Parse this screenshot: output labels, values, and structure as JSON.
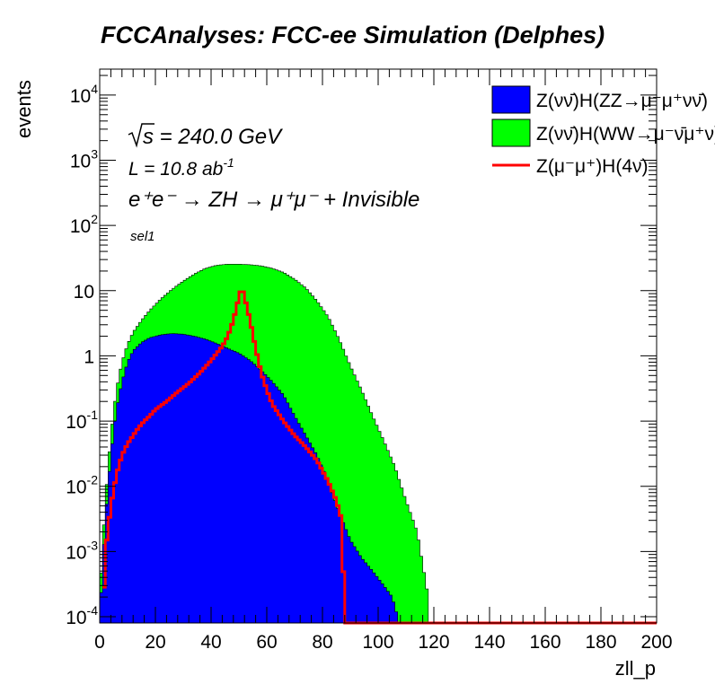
{
  "chart_data": {
    "type": "histogram",
    "title": "FCCAnalyses: FCC-ee Simulation (Delphes)",
    "xlabel": "zll_p",
    "ylabel": "events",
    "xlim": [
      0,
      200
    ],
    "ylim": [
      8e-05,
      25000
    ],
    "yscale": "log",
    "x_ticks": [
      0,
      20,
      40,
      60,
      80,
      100,
      120,
      140,
      160,
      180,
      200
    ],
    "y_ticks": [
      {
        "value": 0.0001,
        "mant": "10",
        "exp": "-4"
      },
      {
        "value": 0.001,
        "mant": "10",
        "exp": "-3"
      },
      {
        "value": 0.01,
        "mant": "10",
        "exp": "-2"
      },
      {
        "value": 0.1,
        "mant": "10",
        "exp": "-1"
      },
      {
        "value": 1,
        "mant": "1",
        "exp": ""
      },
      {
        "value": 10,
        "mant": "10",
        "exp": ""
      },
      {
        "value": 100,
        "mant": "10",
        "exp": "2"
      },
      {
        "value": 1000,
        "mant": "10",
        "exp": "3"
      },
      {
        "value": 10000,
        "mant": "10",
        "exp": "4"
      }
    ],
    "annotations": {
      "sqrt_s": "s = 240.0 GeV",
      "lumi_prefix": "L = 10.8 ab",
      "lumi_exp": "-1",
      "process": "e⁺e⁻ → ZH → μ⁺μ⁻ + Invisible",
      "selection": "sel1"
    },
    "legend_position": "top-right",
    "series": [
      {
        "name": "Z(νν̄)H(ZZ→μ⁻μ⁺νν̄)",
        "color": "#0000ff",
        "style": "filled",
        "points": [
          [
            0,
            0.0001
          ],
          [
            2,
            0.003
          ],
          [
            4,
            0.03
          ],
          [
            6,
            0.15
          ],
          [
            8,
            0.4
          ],
          [
            10,
            0.8
          ],
          [
            12,
            1.2
          ],
          [
            15,
            1.6
          ],
          [
            18,
            1.9
          ],
          [
            22,
            2.1
          ],
          [
            26,
            2.2
          ],
          [
            30,
            2.15
          ],
          [
            34,
            2.0
          ],
          [
            38,
            1.8
          ],
          [
            42,
            1.55
          ],
          [
            46,
            1.3
          ],
          [
            50,
            1.1
          ],
          [
            54,
            0.85
          ],
          [
            58,
            0.6
          ],
          [
            62,
            0.4
          ],
          [
            66,
            0.25
          ],
          [
            70,
            0.12
          ],
          [
            74,
            0.06
          ],
          [
            78,
            0.03
          ],
          [
            82,
            0.012
          ],
          [
            86,
            0.004
          ],
          [
            90,
            0.0015
          ],
          [
            94,
            0.0008
          ],
          [
            98,
            0.0005
          ],
          [
            102,
            0.0003
          ],
          [
            105,
            0.0002
          ],
          [
            107,
            0.0001
          ]
        ]
      },
      {
        "name": "Z(νν̄)H(WW→μ⁻ν̄μ⁺ν)",
        "color": "#00ff00",
        "style": "filled",
        "points": [
          [
            0,
            0.0002
          ],
          [
            2,
            0.006
          ],
          [
            4,
            0.06
          ],
          [
            6,
            0.3
          ],
          [
            8,
            0.8
          ],
          [
            10,
            1.5
          ],
          [
            12,
            2.3
          ],
          [
            15,
            3.5
          ],
          [
            18,
            5
          ],
          [
            22,
            7.5
          ],
          [
            26,
            10.5
          ],
          [
            30,
            14
          ],
          [
            34,
            18
          ],
          [
            38,
            22
          ],
          [
            42,
            24.5
          ],
          [
            46,
            25.5
          ],
          [
            50,
            25.5
          ],
          [
            54,
            25
          ],
          [
            58,
            24
          ],
          [
            62,
            22
          ],
          [
            66,
            19
          ],
          [
            70,
            15
          ],
          [
            74,
            11
          ],
          [
            78,
            7
          ],
          [
            82,
            4
          ],
          [
            86,
            1.8
          ],
          [
            90,
            0.7
          ],
          [
            94,
            0.3
          ],
          [
            98,
            0.12
          ],
          [
            102,
            0.05
          ],
          [
            106,
            0.02
          ],
          [
            110,
            0.006
          ],
          [
            114,
            0.002
          ],
          [
            118,
            0.0002
          ]
        ]
      },
      {
        "name": "Z(μ⁻μ⁺)H(4ν)",
        "color": "#ff0000",
        "style": "line",
        "points": [
          [
            1,
            8e-05
          ],
          [
            2,
            0.001
          ],
          [
            4,
            0.005
          ],
          [
            6,
            0.015
          ],
          [
            8,
            0.03
          ],
          [
            10,
            0.045
          ],
          [
            12,
            0.06
          ],
          [
            14,
            0.08
          ],
          [
            16,
            0.1
          ],
          [
            18,
            0.12
          ],
          [
            20,
            0.15
          ],
          [
            24,
            0.2
          ],
          [
            28,
            0.28
          ],
          [
            32,
            0.38
          ],
          [
            36,
            0.55
          ],
          [
            40,
            0.85
          ],
          [
            44,
            1.4
          ],
          [
            46,
            2
          ],
          [
            48,
            3.5
          ],
          [
            50,
            8
          ],
          [
            51,
            11.5
          ],
          [
            52,
            8
          ],
          [
            54,
            3.5
          ],
          [
            56,
            1.3
          ],
          [
            58,
            0.55
          ],
          [
            60,
            0.3
          ],
          [
            62,
            0.18
          ],
          [
            66,
            0.1
          ],
          [
            70,
            0.06
          ],
          [
            74,
            0.04
          ],
          [
            78,
            0.025
          ],
          [
            82,
            0.012
          ],
          [
            85,
            0.006
          ],
          [
            87,
            0.003
          ],
          [
            88,
            8e-05
          ],
          [
            200,
            8e-05
          ]
        ]
      }
    ]
  }
}
